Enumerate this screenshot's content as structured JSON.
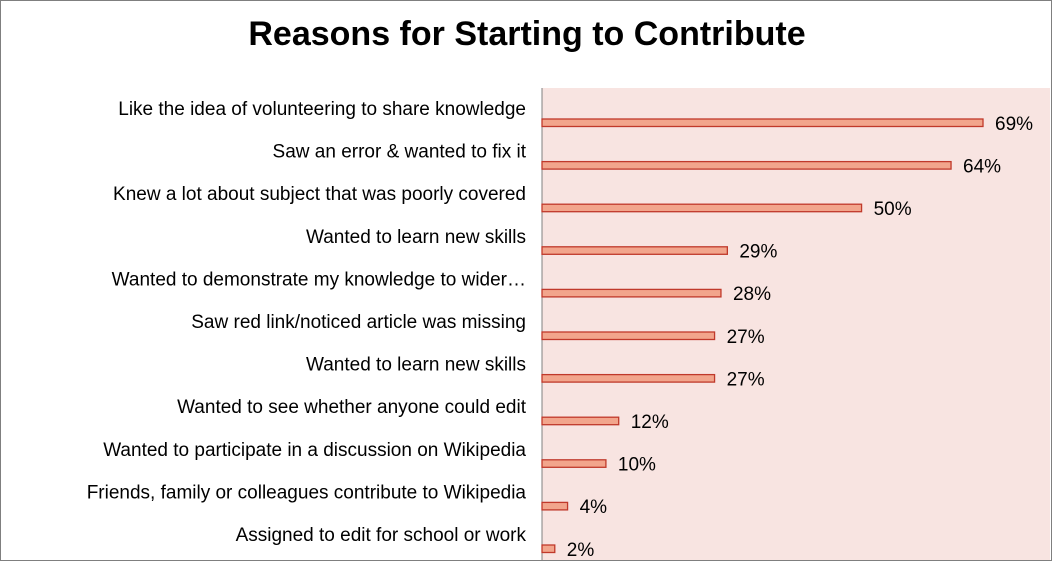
{
  "chart_data": {
    "type": "bar",
    "orientation": "horizontal",
    "title": "Reasons for Starting to Contribute",
    "xlabel": "",
    "ylabel": "",
    "xlim": [
      0,
      69
    ],
    "grid": false,
    "categories": [
      "Like the idea of volunteering to share knowledge",
      "Saw an error & wanted to fix it",
      "Knew a lot about subject that was poorly covered",
      "Wanted to learn new skills",
      "Wanted to demonstrate my knowledge to wider…",
      "Saw red link/noticed article was missing",
      "Wanted to learn new skills",
      "Wanted to see whether anyone could edit",
      "Wanted to participate in a discussion on Wikipedia",
      "Friends, family or colleagues contribute to Wikipedia",
      "Assigned to edit for school or work"
    ],
    "values": [
      69,
      64,
      50,
      29,
      28,
      27,
      27,
      12,
      10,
      4,
      2
    ],
    "value_labels": [
      "69%",
      "64%",
      "50%",
      "29%",
      "28%",
      "27%",
      "27%",
      "12%",
      "10%",
      "4%",
      "2%"
    ],
    "colors": {
      "plot_background": "#f8e4e1",
      "bar_fill": "#f2a58c",
      "bar_stroke": "#c0392b",
      "axis": "#808080"
    }
  }
}
